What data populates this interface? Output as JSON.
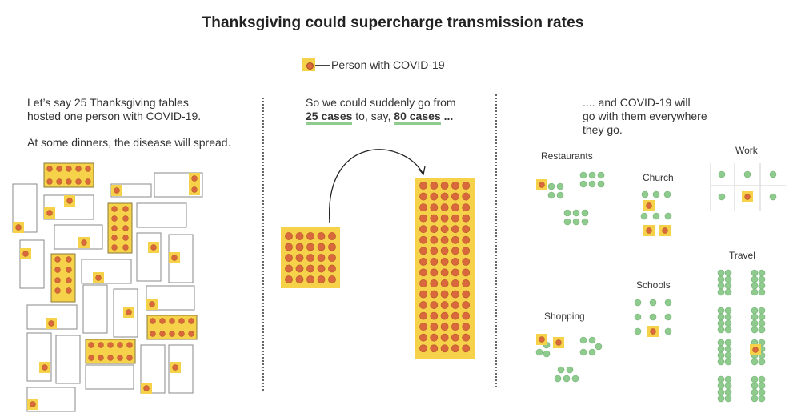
{
  "title": "Thanksgiving could supercharge transmission rates",
  "legend": {
    "label": "Person with COVID-19"
  },
  "colors": {
    "infected_fill": "#f6d24a",
    "infected_dot": "#d9683c",
    "healthy_dot": "#8fca8f",
    "table_border": "#888888",
    "accent_underline": "#8fca8f"
  },
  "panel1": {
    "line1": "Let’s say 25 Thanksgiving tables",
    "line2": "hosted one person with COVID-19.",
    "line3": "At some dinners, the disease will spread."
  },
  "panel2": {
    "line1": "So we could suddenly go from",
    "cases_before": "25 cases",
    "mid": " to, say, ",
    "cases_after": "80 cases",
    "ellipsis": " ..."
  },
  "panel3": {
    "line1": ".... and COVID-19 will",
    "line2": "go with them everywhere",
    "line3": "they go."
  },
  "places": {
    "restaurants": "Restaurants",
    "church": "Church",
    "work": "Work",
    "schools": "Schools",
    "shopping": "Shopping",
    "travel": "Travel"
  },
  "chart_data": {
    "type": "diagram",
    "tables_hosted": 25,
    "cases_before": 25,
    "cases_after": 80
  }
}
